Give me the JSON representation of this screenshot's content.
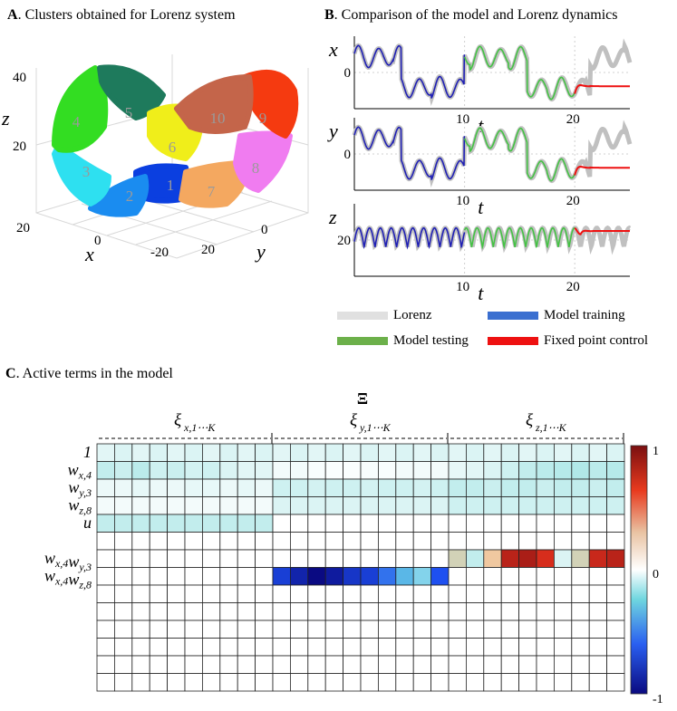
{
  "panels": {
    "a": {
      "letter": "A",
      "title": ". Clusters obtained for Lorenz system"
    },
    "b": {
      "letter": "B",
      "title": ". Comparison of the model and Lorenz dynamics"
    },
    "c": {
      "letter": "C",
      "title": ". Active terms in the model"
    }
  },
  "colors": {
    "lorenz": "#c0c0c0",
    "training": "#1f1fb4",
    "testing": "#44c244",
    "control": "#ee1111"
  },
  "chart_data": [
    {
      "type": "scatter",
      "subtype": "3d-trajectory-clusters",
      "axes": {
        "x_label": "x",
        "y_label": "y",
        "z_label": "z",
        "x_ticks": [
          "20",
          "0",
          "-20"
        ],
        "y_ticks": [
          "20",
          "0"
        ],
        "z_ticks": [
          "40",
          "20"
        ]
      },
      "clusters": [
        {
          "label": "1",
          "color": "#0b3fe0"
        },
        {
          "label": "2",
          "color": "#1a8cf0"
        },
        {
          "label": "3",
          "color": "#2ee0f0"
        },
        {
          "label": "4",
          "color": "#33dd22"
        },
        {
          "label": "5",
          "color": "#1e7a5c"
        },
        {
          "label": "6",
          "color": "#f0ee1a"
        },
        {
          "label": "7",
          "color": "#f4a860"
        },
        {
          "label": "8",
          "color": "#f07cf0"
        },
        {
          "label": "9",
          "color": "#f53a10"
        },
        {
          "label": "10",
          "color": "#c4654a"
        }
      ]
    },
    {
      "type": "line",
      "x_label": "t",
      "xlim": [
        0,
        25
      ],
      "x_ticks": [
        "10",
        "20"
      ],
      "training_end": 10,
      "control_start": 20,
      "rows": [
        {
          "ylabel": "x",
          "y_tick": "0"
        },
        {
          "ylabel": "y",
          "y_tick": "0"
        },
        {
          "ylabel": "z",
          "y_tick": "20"
        }
      ],
      "legend": [
        "Lorenz",
        "Model training",
        "Model testing",
        "Fixed point control"
      ]
    },
    {
      "type": "heatmap",
      "title": "Ξ",
      "column_groups": [
        "ξ",
        "ξ",
        "ξ"
      ],
      "column_group_subscripts": [
        "x,1⋯K",
        "y,1⋯K",
        "z,1⋯K"
      ],
      "columns_per_group": 10,
      "row_labels": [
        {
          "base": "1",
          "sub": ""
        },
        {
          "base": "w",
          "sub": "x,4"
        },
        {
          "base": "w",
          "sub": "y,3"
        },
        {
          "base": "w",
          "sub": "z,8"
        },
        {
          "base": "u",
          "sub": ""
        },
        {
          "base": "",
          "sub": ""
        },
        {
          "base": "w",
          "sub": "x,4",
          "base2": "w",
          "sub2": "y,3"
        },
        {
          "base": "w",
          "sub": "x,4",
          "base2": "w",
          "sub2": "z,8"
        },
        {
          "base": "",
          "sub": ""
        },
        {
          "base": "",
          "sub": ""
        },
        {
          "base": "",
          "sub": ""
        },
        {
          "base": "",
          "sub": ""
        },
        {
          "base": "",
          "sub": ""
        },
        {
          "base": "",
          "sub": ""
        }
      ],
      "colorbar": {
        "min": -1,
        "max": 1,
        "ticks": [
          "1",
          "0",
          "-1"
        ]
      },
      "values": [
        [
          0.12,
          0.15,
          0.12,
          0.15,
          0.12,
          0.15,
          0.12,
          0.15,
          0.12,
          0.15,
          0.12,
          0.15,
          0.12,
          0.15,
          0.12,
          0.15,
          0.12,
          0.15,
          0.12,
          0.15,
          0.12,
          0.15,
          0.12,
          0.15,
          0.12,
          0.15,
          0.12,
          0.15,
          0.12,
          0.15
        ],
        [
          0.25,
          0.22,
          0.28,
          0.2,
          0.22,
          0.18,
          0.2,
          0.15,
          0.12,
          0.12,
          0.05,
          0.05,
          0.03,
          0.02,
          0.02,
          0.03,
          0.03,
          0.05,
          0.05,
          0.05,
          0.1,
          0.12,
          0.15,
          0.2,
          0.25,
          0.28,
          0.3,
          0.32,
          0.28,
          0.3
        ],
        [
          0.08,
          0.08,
          0.1,
          0.08,
          0.08,
          0.1,
          0.1,
          0.08,
          0.1,
          0.08,
          0.2,
          0.2,
          0.18,
          0.2,
          0.2,
          0.18,
          0.2,
          0.2,
          0.18,
          0.2,
          0.25,
          0.25,
          0.22,
          0.25,
          0.25,
          0.22,
          0.25,
          0.25,
          0.22,
          0.25
        ],
        [
          0.05,
          0.05,
          0.05,
          0.05,
          0.05,
          0.05,
          0.05,
          0.05,
          0.05,
          0.05,
          0.15,
          0.15,
          0.15,
          0.15,
          0.15,
          0.15,
          0.15,
          0.15,
          0.15,
          0.15,
          0.2,
          0.2,
          0.2,
          0.2,
          0.2,
          0.2,
          0.2,
          0.2,
          0.2,
          0.2
        ],
        [
          0.25,
          0.25,
          0.25,
          0.25,
          0.25,
          0.25,
          0.25,
          0.25,
          0.25,
          0.25,
          0,
          0,
          0,
          0,
          0,
          0,
          0,
          0,
          0,
          0,
          0,
          0,
          0,
          0,
          0,
          0,
          0,
          0,
          0,
          0
        ],
        [
          0,
          0,
          0,
          0,
          0,
          0,
          0,
          0,
          0,
          0,
          0,
          0,
          0,
          0,
          0,
          0,
          0,
          0,
          0,
          0,
          0,
          0,
          0,
          0,
          0,
          0,
          0,
          0,
          0,
          0
        ],
        [
          0,
          0,
          0,
          0,
          0,
          0,
          0,
          0,
          0,
          0,
          0,
          0,
          0,
          0,
          0,
          0,
          0,
          0,
          0,
          0,
          0.35,
          0.25,
          0.4,
          0.85,
          0.9,
          0.75,
          0.15,
          0.35,
          0.8,
          0.85
        ],
        [
          0,
          0,
          0,
          0,
          0,
          0,
          0,
          0,
          0,
          0,
          -0.7,
          -0.85,
          -1.0,
          -0.9,
          -0.75,
          -0.7,
          -0.5,
          -0.3,
          -0.2,
          -0.6,
          0,
          0,
          0,
          0,
          0,
          0,
          0,
          0,
          0,
          0
        ],
        [
          0,
          0,
          0,
          0,
          0,
          0,
          0,
          0,
          0,
          0,
          0,
          0,
          0,
          0,
          0,
          0,
          0,
          0,
          0,
          0,
          0,
          0,
          0,
          0,
          0,
          0,
          0,
          0,
          0,
          0
        ],
        [
          0,
          0,
          0,
          0,
          0,
          0,
          0,
          0,
          0,
          0,
          0,
          0,
          0,
          0,
          0,
          0,
          0,
          0,
          0,
          0,
          0,
          0,
          0,
          0,
          0,
          0,
          0,
          0,
          0,
          0
        ],
        [
          0,
          0,
          0,
          0,
          0,
          0,
          0,
          0,
          0,
          0,
          0,
          0,
          0,
          0,
          0,
          0,
          0,
          0,
          0,
          0,
          0,
          0,
          0,
          0,
          0,
          0,
          0,
          0,
          0,
          0
        ],
        [
          0,
          0,
          0,
          0,
          0,
          0,
          0,
          0,
          0,
          0,
          0,
          0,
          0,
          0,
          0,
          0,
          0,
          0,
          0,
          0,
          0,
          0,
          0,
          0,
          0,
          0,
          0,
          0,
          0,
          0
        ],
        [
          0,
          0,
          0,
          0,
          0,
          0,
          0,
          0,
          0,
          0,
          0,
          0,
          0,
          0,
          0,
          0,
          0,
          0,
          0,
          0,
          0,
          0,
          0,
          0,
          0,
          0,
          0,
          0,
          0,
          0
        ],
        [
          0,
          0,
          0,
          0,
          0,
          0,
          0,
          0,
          0,
          0,
          0,
          0,
          0,
          0,
          0,
          0,
          0,
          0,
          0,
          0,
          0,
          0,
          0,
          0,
          0,
          0,
          0,
          0,
          0,
          0
        ]
      ]
    }
  ]
}
